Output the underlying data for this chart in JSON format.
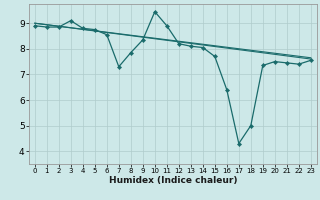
{
  "title": "",
  "xlabel": "Humidex (Indice chaleur)",
  "ylabel": "",
  "bg_color": "#cde8e8",
  "grid_color": "#b0cccc",
  "line_color": "#1a6b6b",
  "marker_color": "#1a6b6b",
  "xlim": [
    -0.5,
    23.5
  ],
  "ylim": [
    3.5,
    9.75
  ],
  "xticks": [
    0,
    1,
    2,
    3,
    4,
    5,
    6,
    7,
    8,
    9,
    10,
    11,
    12,
    13,
    14,
    15,
    16,
    17,
    18,
    19,
    20,
    21,
    22,
    23
  ],
  "yticks": [
    4,
    5,
    6,
    7,
    8,
    9
  ],
  "series": [
    [
      0,
      8.9
    ],
    [
      1,
      8.85
    ],
    [
      2,
      8.85
    ],
    [
      3,
      9.1
    ],
    [
      4,
      8.8
    ],
    [
      5,
      8.75
    ],
    [
      6,
      8.55
    ],
    [
      7,
      7.3
    ],
    [
      8,
      7.85
    ],
    [
      9,
      8.35
    ],
    [
      10,
      9.45
    ],
    [
      11,
      8.9
    ],
    [
      12,
      8.2
    ],
    [
      13,
      8.1
    ],
    [
      14,
      8.05
    ],
    [
      15,
      7.7
    ],
    [
      16,
      6.4
    ],
    [
      17,
      4.3
    ],
    [
      18,
      5.0
    ],
    [
      19,
      7.35
    ],
    [
      20,
      7.5
    ],
    [
      21,
      7.45
    ],
    [
      22,
      7.4
    ],
    [
      23,
      7.55
    ]
  ],
  "trend_series": [
    [
      0,
      9.0
    ],
    [
      23,
      7.65
    ]
  ],
  "trend2_series": [
    [
      0,
      9.0
    ],
    [
      14,
      8.15
    ],
    [
      23,
      7.6
    ]
  ]
}
